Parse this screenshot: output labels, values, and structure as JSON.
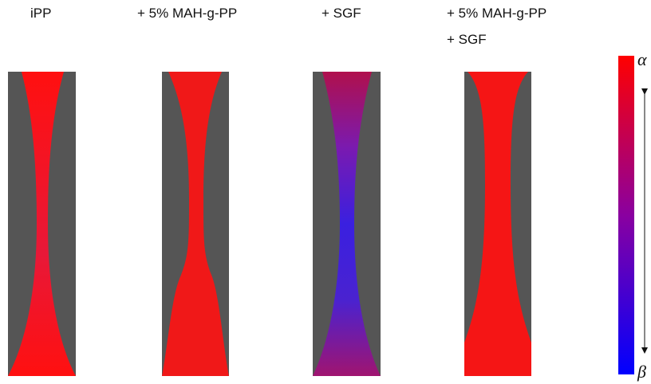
{
  "panels": [
    {
      "label_lines": [
        "iPP"
      ]
    },
    {
      "label_lines": [
        "+ 5% MAH-g-PP"
      ]
    },
    {
      "label_lines": [
        "+ SGF"
      ]
    },
    {
      "label_lines": [
        "+ 5% MAH-g-PP",
        "+ SGF"
      ]
    }
  ],
  "colorbar": {
    "top": "α",
    "bottom": "β"
  }
}
